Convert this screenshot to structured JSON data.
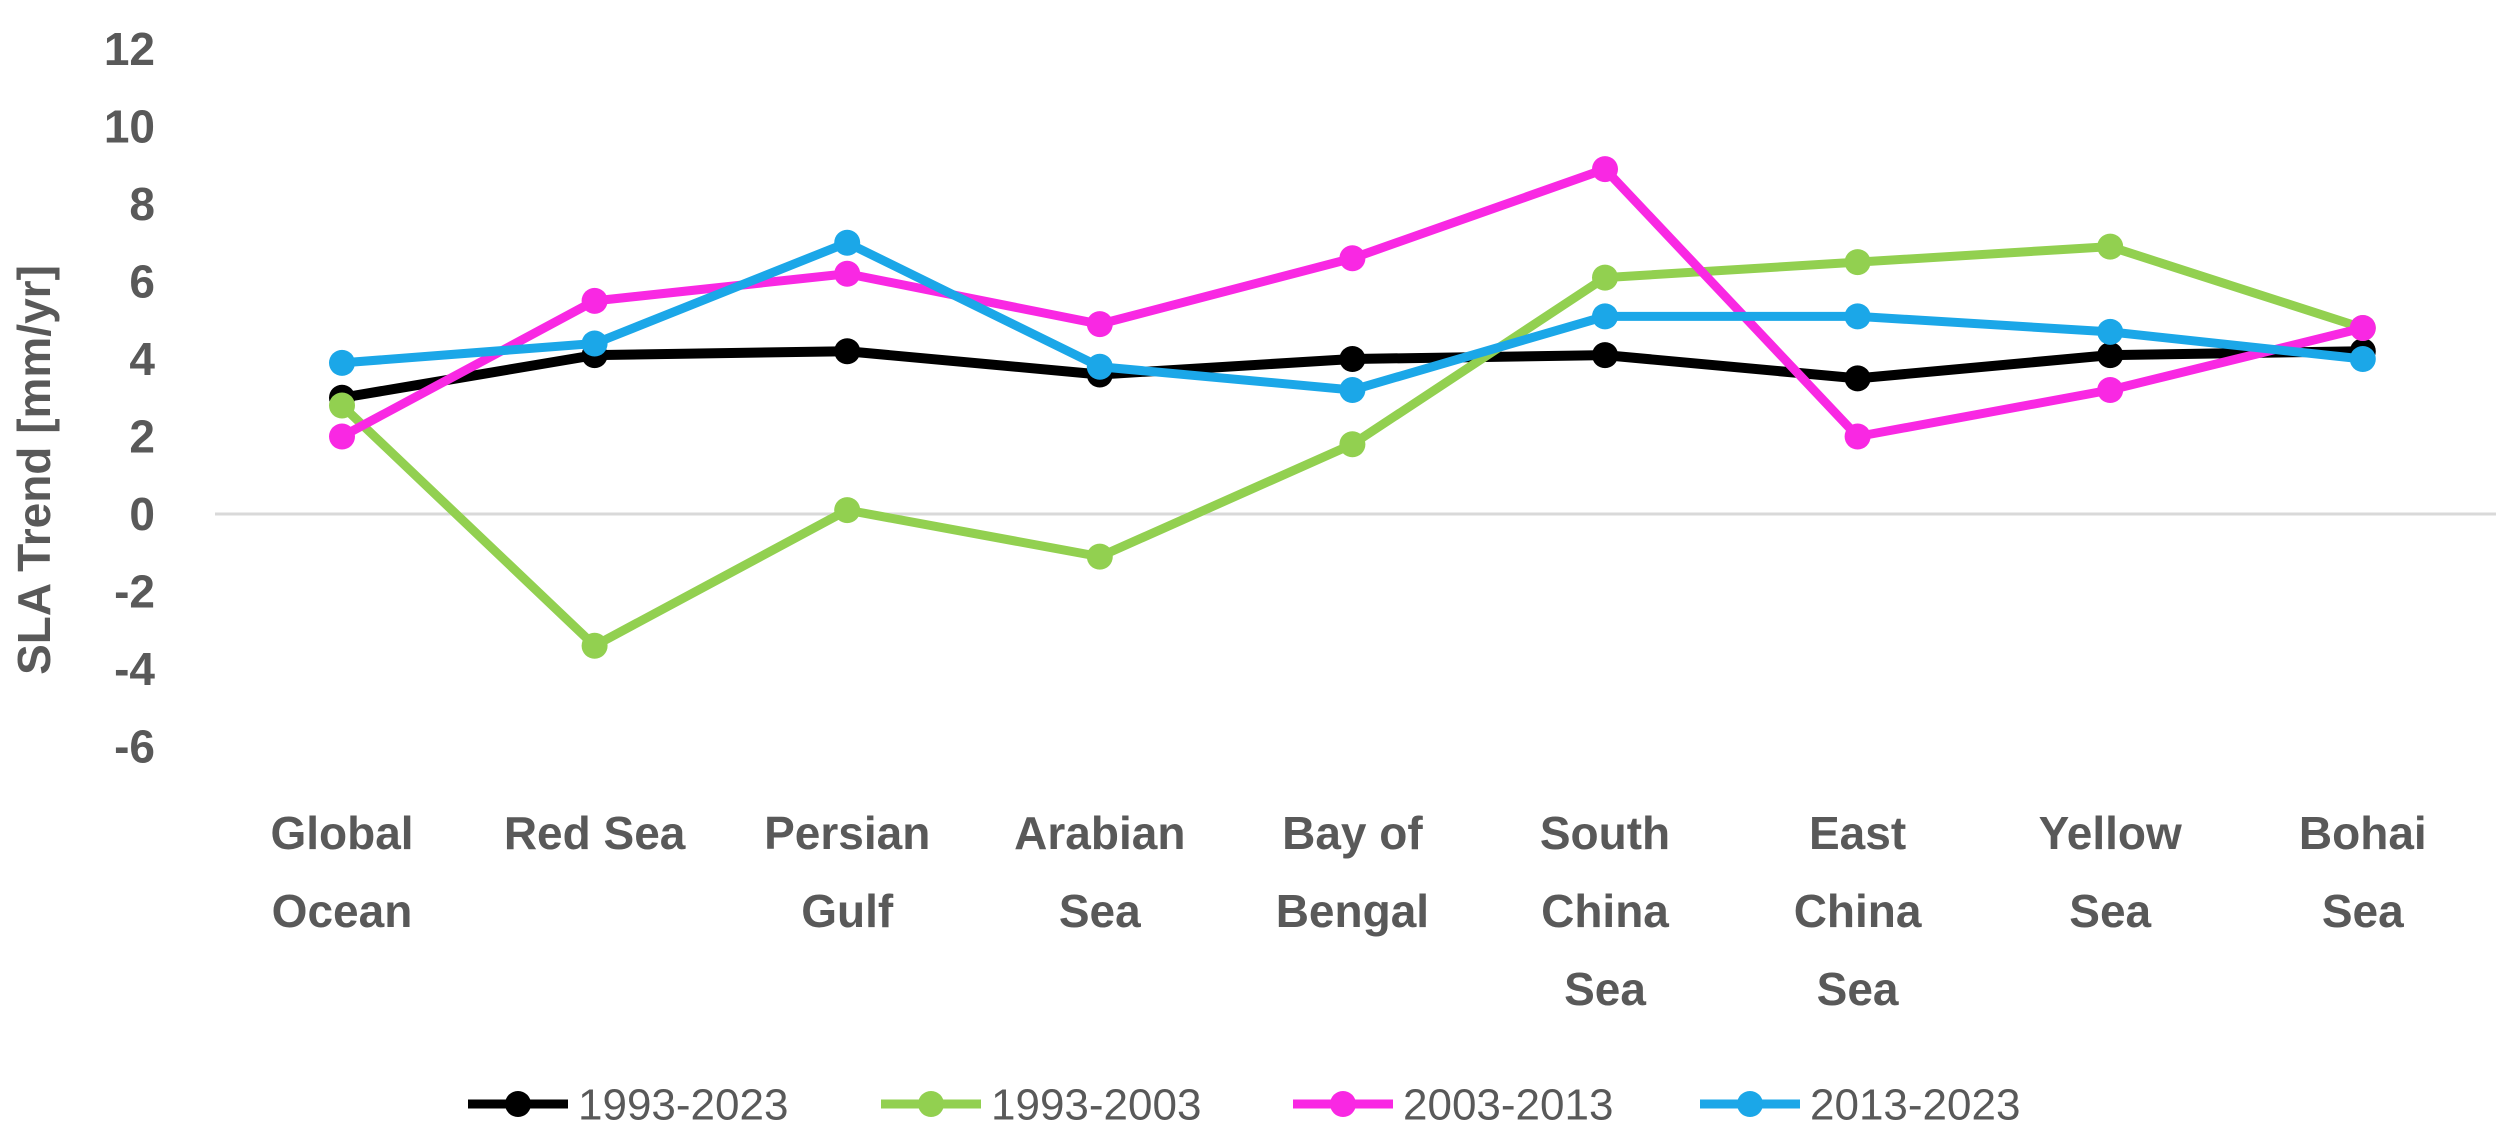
{
  "chart_data": {
    "type": "line",
    "title": "",
    "xlabel": "",
    "ylabel": "SLA Trend [mm/yr]",
    "ylim": [
      -6,
      12
    ],
    "yticks": [
      12,
      10,
      8,
      6,
      4,
      2,
      0,
      -2,
      -4,
      -6
    ],
    "grid": "horizontal zero line only",
    "gridline_color": "#d9d9d9",
    "axis_text_color": "#595959",
    "background_color": "#ffffff",
    "legend_position": "bottom",
    "marker_style": "filled circle on line",
    "categories": [
      "Global Ocean",
      "Red Sea",
      "Persian Gulf",
      "Arabian Sea",
      "Bay of Bengal",
      "South China Sea",
      "East China Sea",
      "Yellow Sea",
      "Bohai Sea"
    ],
    "category_label_lines": [
      [
        "Global",
        "Ocean"
      ],
      [
        "Red Sea"
      ],
      [
        "Persian",
        "Gulf"
      ],
      [
        "Arabian",
        "Sea"
      ],
      [
        "Bay of",
        "Bengal"
      ],
      [
        "South",
        "China",
        "Sea"
      ],
      [
        "East",
        "China",
        "Sea"
      ],
      [
        "Yellow",
        "Sea"
      ],
      [
        "Bohai",
        "Sea"
      ]
    ],
    "series": [
      {
        "name": "1993-2023",
        "color": "#000000",
        "values": [
          3.0,
          4.1,
          4.2,
          3.6,
          4.0,
          4.1,
          3.5,
          4.1,
          4.2
        ]
      },
      {
        "name": "1993-2003",
        "color": "#92d050",
        "values": [
          2.8,
          -3.4,
          0.1,
          -1.1,
          1.8,
          6.1,
          6.5,
          6.9,
          4.8
        ]
      },
      {
        "name": "2003-2013",
        "color": "#f928e3",
        "values": [
          2.0,
          5.5,
          6.2,
          4.9,
          6.6,
          8.9,
          2.0,
          3.2,
          4.8
        ]
      },
      {
        "name": "2013-2023",
        "color": "#1ba7e8",
        "values": [
          3.9,
          4.4,
          7.0,
          3.8,
          3.2,
          5.1,
          5.1,
          4.7,
          4.0
        ]
      }
    ]
  }
}
